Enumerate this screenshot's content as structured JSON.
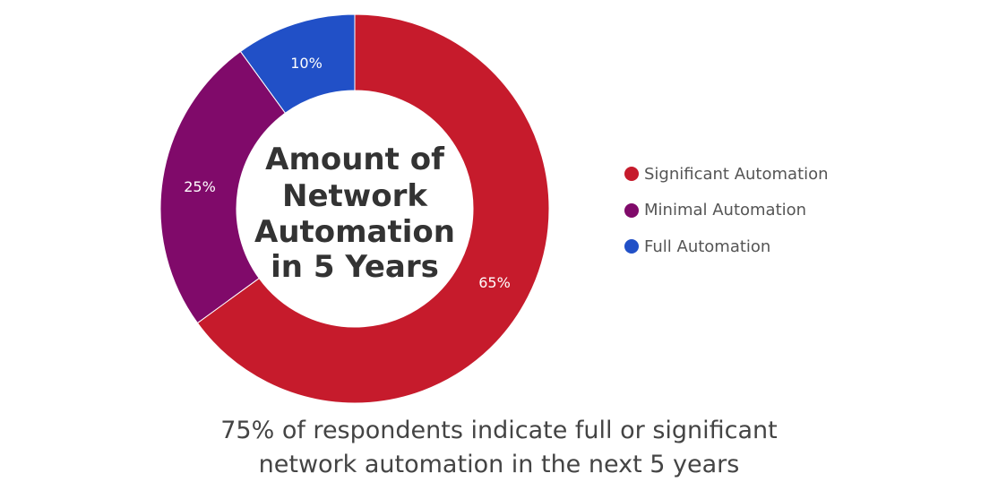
{
  "chart_data": {
    "type": "pie",
    "style": "donut",
    "title": "Amount of Network Automation in 5 Years",
    "title_lines": [
      "Amount of",
      "Network",
      "Automation",
      "in 5 Years"
    ],
    "categories": [
      "Significant Automation",
      "Minimal Automation",
      "Full Automation"
    ],
    "values": [
      65,
      25,
      10
    ],
    "labels": [
      "65%",
      "25%",
      "10%"
    ],
    "colors": [
      "#c61b2c",
      "#800a6a",
      "#2150c7"
    ],
    "legend": "right"
  },
  "caption": {
    "line1": "75% of respondents indicate full or significant",
    "line2": "network automation in the next 5 years"
  }
}
